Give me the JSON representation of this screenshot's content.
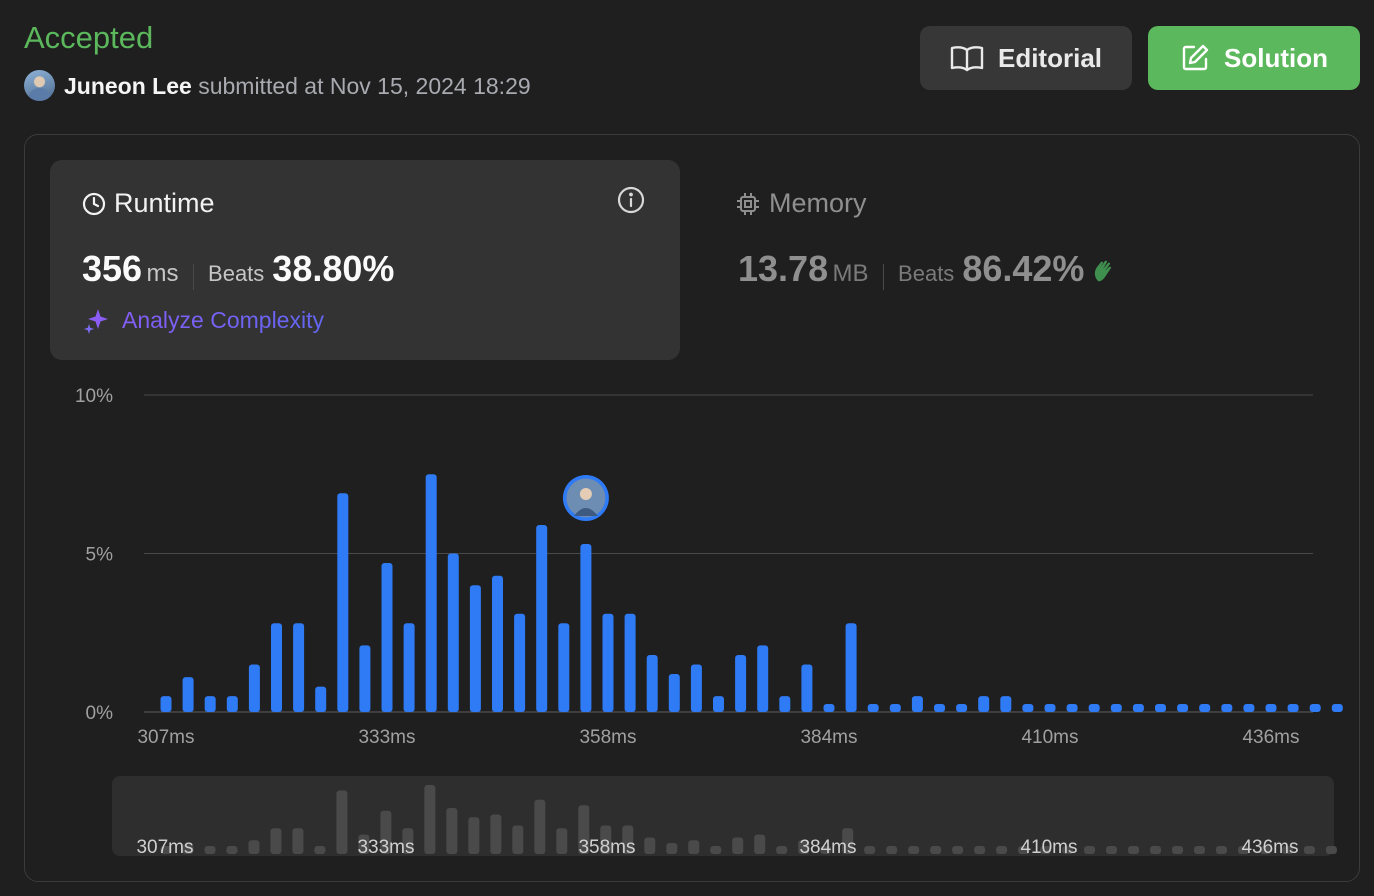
{
  "header": {
    "status": "Accepted",
    "user_name": "Juneon Lee",
    "submitted_text": "submitted at Nov 15, 2024 18:29",
    "editorial_label": "Editorial",
    "solution_label": "Solution"
  },
  "runtime": {
    "title": "Runtime",
    "value": "356",
    "unit": "ms",
    "beats_label": "Beats",
    "beats_value": "38.80%",
    "analyze_label": "Analyze Complexity",
    "icon": "clock-icon"
  },
  "memory": {
    "title": "Memory",
    "value": "13.78",
    "unit": "MB",
    "beats_label": "Beats",
    "beats_value": "86.42%",
    "icon": "chip-icon"
  },
  "colors": {
    "accepted": "#5cb85c",
    "bar": "#2f7af5",
    "background": "#1f1f1f",
    "card": "#333333"
  },
  "chart_data": {
    "type": "bar",
    "ylim": [
      0,
      10
    ],
    "y_ticks": [
      "0%",
      "5%",
      "10%"
    ],
    "x_tick_labels": [
      "307ms",
      "333ms",
      "358ms",
      "384ms",
      "410ms",
      "436ms"
    ],
    "x_tick_bar_index": [
      0,
      10,
      20,
      30,
      40,
      50
    ],
    "values": [
      0.5,
      1.1,
      0.5,
      0.5,
      1.5,
      2.8,
      2.8,
      0.8,
      6.9,
      2.1,
      4.7,
      2.8,
      7.5,
      5.0,
      4.0,
      4.3,
      3.1,
      5.9,
      2.8,
      5.3,
      3.1,
      3.1,
      1.8,
      1.2,
      1.5,
      0.5,
      1.8,
      2.1,
      0.5,
      1.5,
      0.2,
      2.8,
      0.2,
      0.2,
      0.5,
      0.2,
      0.2,
      0.5,
      0.5,
      0.2,
      0.2,
      0.2,
      0.2,
      0.2,
      0.2,
      0.2,
      0.2,
      0.2,
      0.2,
      0.2,
      0.2,
      0.2,
      0.2,
      0.2
    ],
    "highlight_index": 19,
    "grid": true
  }
}
